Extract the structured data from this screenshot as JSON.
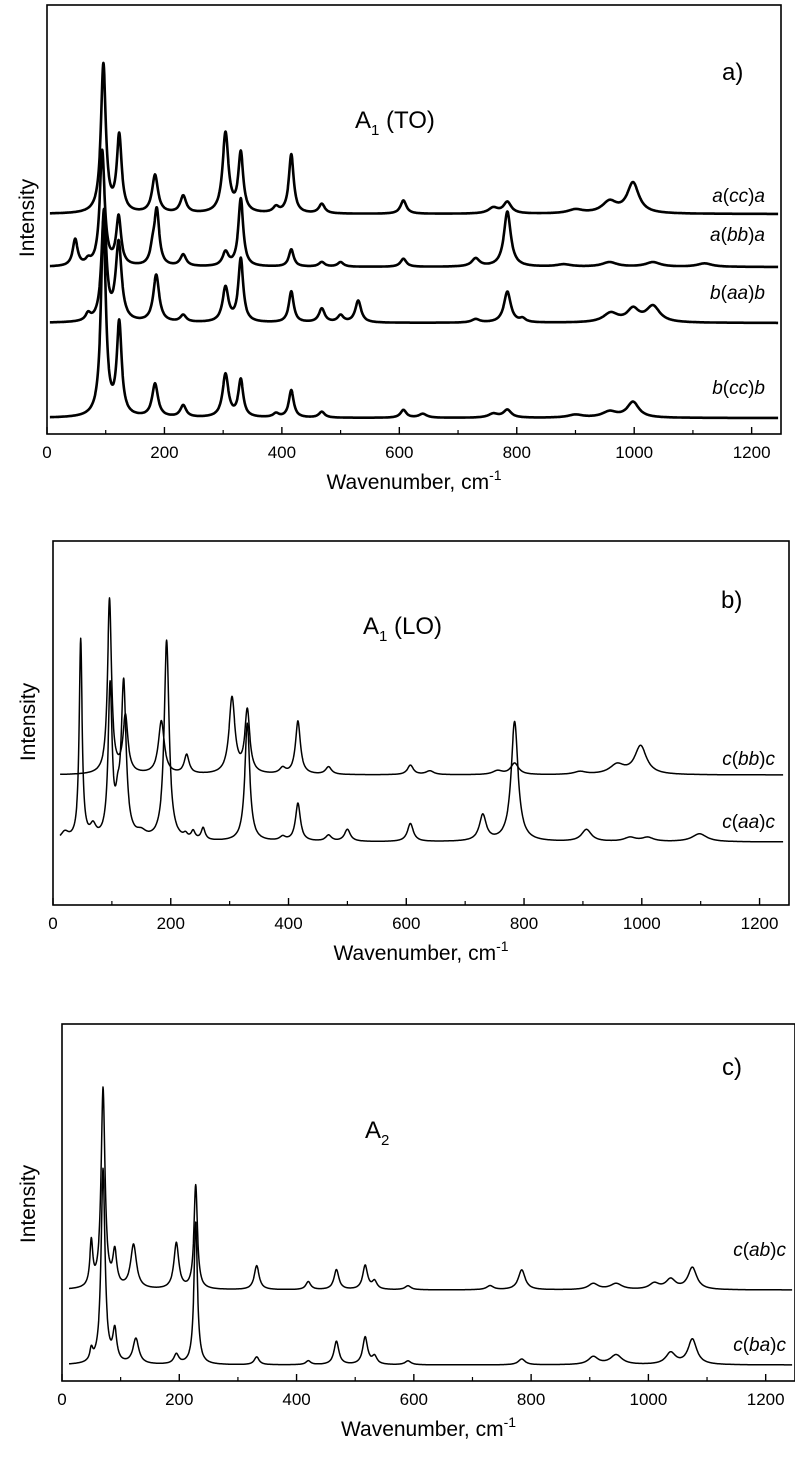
{
  "chart_data": [
    {
      "type": "line",
      "panel": "a)",
      "mode_main": "A",
      "mode_sub": "1",
      "mode_rest": " (TO)",
      "xlabel_main": "Wavenumber, cm",
      "xlabel_sup": "-1",
      "ylabel": "Intensity",
      "xlim": [
        0,
        1250
      ],
      "xticks": [
        0,
        200,
        400,
        600,
        800,
        1000,
        1200
      ],
      "line_width": "thick",
      "series": [
        {
          "name": "b(cc)b",
          "name_parts": [
            "b",
            "(",
            "cc",
            ")",
            "b"
          ],
          "offset": 3,
          "scale": 1.0,
          "peaks": [
            [
              96,
              100,
              5
            ],
            [
              123,
              47,
              5
            ],
            [
              184,
              17,
              6
            ],
            [
              232,
              6,
              6
            ],
            [
              304,
              22,
              6
            ],
            [
              330,
              19,
              5
            ],
            [
              390,
              2,
              6
            ],
            [
              416,
              14,
              5
            ],
            [
              468,
              3,
              6
            ],
            [
              607,
              4,
              6
            ],
            [
              640,
              2,
              8
            ],
            [
              760,
              2,
              10
            ],
            [
              784,
              4,
              8
            ],
            [
              900,
              1.5,
              15
            ],
            [
              958,
              3,
              15
            ],
            [
              998,
              8,
              12
            ]
          ]
        },
        {
          "name": "b(aa)b",
          "name_parts": [
            "b",
            "(",
            "aa",
            ")",
            "b"
          ],
          "offset": 2,
          "scale": 1.0,
          "peaks": [
            [
              70,
              6,
              5
            ],
            [
              97,
              95,
              5
            ],
            [
              122,
              68,
              6
            ],
            [
              186,
              41,
              6
            ],
            [
              232,
              6,
              6
            ],
            [
              304,
              30,
              6
            ],
            [
              330,
              55,
              5
            ],
            [
              416,
              27,
              5
            ],
            [
              468,
              12,
              6
            ],
            [
              500,
              6,
              6
            ],
            [
              530,
              19,
              6
            ],
            [
              730,
              3,
              8
            ],
            [
              784,
              27,
              7
            ],
            [
              810,
              3,
              6
            ],
            [
              960,
              8,
              15
            ],
            [
              998,
              11,
              12
            ],
            [
              1032,
              14,
              14
            ]
          ]
        },
        {
          "name": "a(bb)a",
          "name_parts": [
            "a",
            "(",
            "bb",
            ")",
            "a"
          ],
          "offset": 1,
          "scale": 1.0,
          "peaks": [
            [
              48,
              23,
              5
            ],
            [
              70,
              4,
              5
            ],
            [
              94,
              100,
              5
            ],
            [
              122,
              42,
              5
            ],
            [
              180,
              12,
              5
            ],
            [
              187,
              47,
              5
            ],
            [
              232,
              10,
              6
            ],
            [
              304,
              12,
              6
            ],
            [
              330,
              59,
              5
            ],
            [
              416,
              15,
              5
            ],
            [
              468,
              4,
              6
            ],
            [
              500,
              4,
              6
            ],
            [
              607,
              7,
              6
            ],
            [
              730,
              7,
              8
            ],
            [
              784,
              48,
              7
            ],
            [
              880,
              2,
              15
            ],
            [
              958,
              4,
              15
            ],
            [
              1032,
              4,
              15
            ],
            [
              1120,
              3,
              15
            ]
          ]
        },
        {
          "name": "a(cc)a",
          "name_parts": [
            "a",
            "(",
            "cc",
            ")",
            "a"
          ],
          "offset": 0,
          "scale": 1.0,
          "peaks": [
            [
              96,
              78,
              5
            ],
            [
              123,
              40,
              5
            ],
            [
              184,
              20,
              6
            ],
            [
              232,
              9,
              6
            ],
            [
              304,
              42,
              6
            ],
            [
              330,
              31,
              5
            ],
            [
              390,
              3,
              6
            ],
            [
              416,
              31,
              5
            ],
            [
              468,
              5,
              6
            ],
            [
              607,
              7,
              6
            ],
            [
              760,
              3,
              10
            ],
            [
              784,
              6,
              8
            ],
            [
              900,
              2,
              15
            ],
            [
              958,
              6,
              15
            ],
            [
              998,
              16,
              12
            ]
          ]
        }
      ]
    },
    {
      "type": "line",
      "panel": "b)",
      "mode_main": "A",
      "mode_sub": "1",
      "mode_rest": " (LO)",
      "xlabel_main": "Wavenumber, cm",
      "xlabel_sup": "-1",
      "ylabel": "Intensity",
      "xlim": [
        0,
        1250
      ],
      "xticks": [
        0,
        200,
        400,
        600,
        800,
        1000,
        1200
      ],
      "line_width": "thin",
      "series": [
        {
          "name": "c(aa)c",
          "name_parts": [
            "c",
            "(",
            "aa",
            ")",
            "c"
          ],
          "offset": 1,
          "scale": 1.0,
          "peaks": [
            [
              20,
              4,
              8
            ],
            [
              47,
              100,
              3
            ],
            [
              68,
              6,
              6
            ],
            [
              97,
              75,
              4
            ],
            [
              110,
              12,
              4
            ],
            [
              120,
              77,
              5
            ],
            [
              150,
              3,
              10
            ],
            [
              193,
              100,
              5
            ],
            [
              225,
              2,
              4
            ],
            [
              238,
              4,
              4
            ],
            [
              255,
              6,
              4
            ],
            [
              330,
              59,
              5
            ],
            [
              390,
              2,
              6
            ],
            [
              416,
              19,
              5
            ],
            [
              468,
              3,
              6
            ],
            [
              500,
              6,
              6
            ],
            [
              607,
              9,
              6
            ],
            [
              730,
              13,
              7
            ],
            [
              784,
              60,
              7
            ],
            [
              906,
              6,
              10
            ],
            [
              980,
              2,
              12
            ],
            [
              1010,
              2,
              12
            ],
            [
              1098,
              4,
              15
            ]
          ]
        },
        {
          "name": "c(bb)c",
          "name_parts": [
            "c",
            "(",
            "bb",
            ")",
            "c"
          ],
          "offset": 0,
          "scale": 1.0,
          "peaks": [
            [
              96,
              92,
              4
            ],
            [
              123,
              30,
              5
            ],
            [
              184,
              28,
              6
            ],
            [
              227,
              10,
              5
            ],
            [
              304,
              40,
              6
            ],
            [
              330,
              33,
              5
            ],
            [
              390,
              3,
              6
            ],
            [
              416,
              28,
              5
            ],
            [
              468,
              4,
              6
            ],
            [
              607,
              5,
              6
            ],
            [
              640,
              2,
              8
            ],
            [
              755,
              2,
              10
            ],
            [
              784,
              6,
              8
            ],
            [
              895,
              1.5,
              12
            ],
            [
              958,
              5,
              15
            ],
            [
              998,
              15,
              12
            ]
          ]
        }
      ]
    },
    {
      "type": "line",
      "panel": "c)",
      "mode_main": "A",
      "mode_sub": "2",
      "mode_rest": "",
      "xlabel_main": "Wavenumber, cm",
      "xlabel_sup": "-1",
      "ylabel": "Intensity",
      "xlim": [
        0,
        1250
      ],
      "xticks": [
        0,
        200,
        400,
        600,
        800,
        1000,
        1200
      ],
      "line_width": "thin",
      "series": [
        {
          "name": "c(ba)c",
          "name_parts": [
            "c",
            "(",
            "ba",
            ")",
            "c"
          ],
          "offset": 1,
          "scale": 1.0,
          "peaks": [
            [
              50,
              6,
              3
            ],
            [
              70,
              100,
              4
            ],
            [
              90,
              16,
              4
            ],
            [
              126,
              13,
              6
            ],
            [
              195,
              5,
              5
            ],
            [
              228,
              73,
              3.5
            ],
            [
              332,
              4,
              5
            ],
            [
              420,
              2,
              5
            ],
            [
              468,
              12,
              5
            ],
            [
              517,
              14,
              5
            ],
            [
              533,
              4,
              5
            ],
            [
              590,
              2,
              6
            ],
            [
              784,
              3,
              7
            ],
            [
              906,
              4,
              10
            ],
            [
              945,
              5,
              12
            ],
            [
              1038,
              6,
              10
            ],
            [
              1075,
              13,
              9
            ]
          ]
        },
        {
          "name": "c(ab)c",
          "name_parts": [
            "c",
            "(",
            "ab",
            ")",
            "c"
          ],
          "offset": 0,
          "scale": 1.0,
          "peaks": [
            [
              50,
              22,
              3
            ],
            [
              70,
              100,
              4
            ],
            [
              90,
              17,
              4
            ],
            [
              122,
              22,
              6
            ],
            [
              195,
              23,
              5
            ],
            [
              228,
              52,
              3.5
            ],
            [
              332,
              12,
              5
            ],
            [
              420,
              4,
              5
            ],
            [
              468,
              10,
              5
            ],
            [
              517,
              12,
              5
            ],
            [
              533,
              4,
              5
            ],
            [
              590,
              2,
              6
            ],
            [
              730,
              2,
              7
            ],
            [
              784,
              10,
              7
            ],
            [
              906,
              3,
              10
            ],
            [
              945,
              3,
              12
            ],
            [
              1010,
              3,
              10
            ],
            [
              1038,
              5,
              10
            ],
            [
              1075,
              11,
              9
            ]
          ]
        }
      ]
    }
  ]
}
